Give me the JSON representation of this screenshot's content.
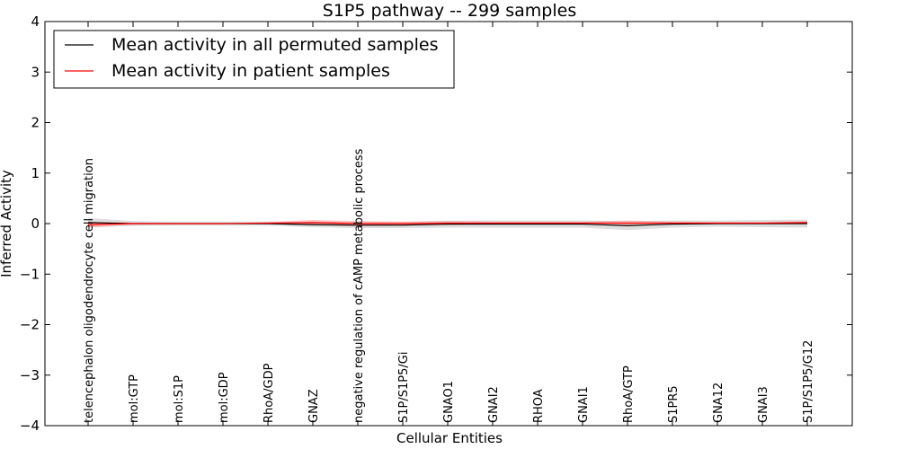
{
  "chart_data": {
    "type": "line",
    "title": "S1P5 pathway -- 299 samples",
    "xlabel": "Cellular Entities",
    "ylabel": "Inferred Activity",
    "ylim": [
      -4,
      4
    ],
    "yticks": [
      4,
      3,
      2,
      1,
      0,
      -1,
      -2,
      -3,
      -4
    ],
    "ytick_labels": [
      "4",
      "3",
      "2",
      "1",
      "0",
      "−1",
      "−2",
      "−3",
      "−4"
    ],
    "categories": [
      "telencephalon oligodendrocyte cell migration",
      "mol:GTP",
      "mol:S1P",
      "mol:GDP",
      "RhoA/GDP",
      "GNAZ",
      "negative regulation of cAMP metabolic process",
      "S1P/S1P5/Gi",
      "GNAO1",
      "GNAI2",
      "RHOA",
      "GNAI1",
      "RhoA/GTP",
      "S1PR5",
      "GNA12",
      "GNAI3",
      "S1P/S1P5/G12"
    ],
    "series": [
      {
        "name": "Mean activity in all permuted samples",
        "color": "#000000",
        "band_color": "#c8c8c8",
        "values": [
          0.02,
          0.0,
          0.0,
          0.0,
          0.0,
          -0.02,
          -0.03,
          -0.03,
          -0.01,
          -0.01,
          -0.01,
          -0.01,
          -0.04,
          -0.01,
          0.0,
          0.0,
          0.0
        ],
        "band_halfwidth": [
          0.09,
          0.05,
          0.04,
          0.04,
          0.04,
          0.05,
          0.06,
          0.06,
          0.07,
          0.07,
          0.07,
          0.07,
          0.09,
          0.07,
          0.06,
          0.07,
          0.08
        ]
      },
      {
        "name": "Mean activity in patient samples",
        "color": "#ff0000",
        "band_color": "#ff9090",
        "values": [
          -0.02,
          0.0,
          0.0,
          0.0,
          0.01,
          0.02,
          0.0,
          0.0,
          0.01,
          0.01,
          0.01,
          0.01,
          0.01,
          0.01,
          0.01,
          0.01,
          0.02
        ],
        "band_halfwidth": [
          0.06,
          0.02,
          0.01,
          0.01,
          0.02,
          0.05,
          0.05,
          0.04,
          0.04,
          0.03,
          0.03,
          0.03,
          0.05,
          0.03,
          0.02,
          0.02,
          0.03
        ]
      }
    ],
    "legend": {
      "location": "top-left",
      "entries": [
        "Mean activity in all permuted samples",
        "Mean activity in patient samples"
      ]
    },
    "grid": false
  }
}
